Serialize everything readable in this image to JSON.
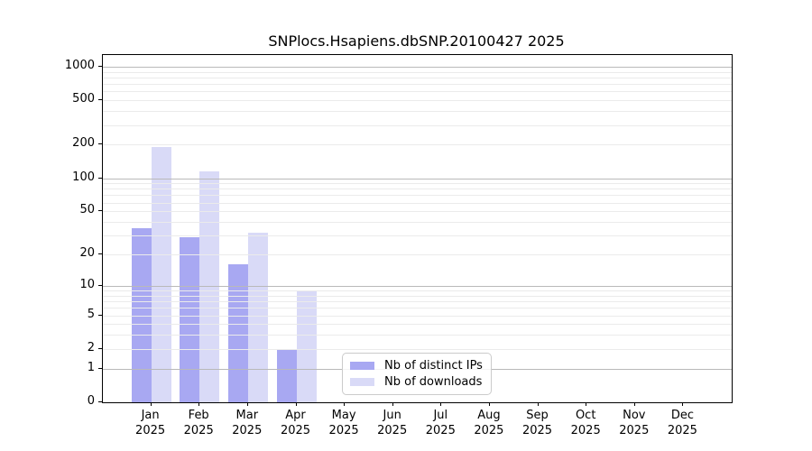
{
  "chart_data": {
    "type": "bar",
    "title": "SNPlocs.Hsapiens.dbSNP.20100427 2025",
    "categories": [
      "Jan 2025",
      "Feb 2025",
      "Mar 2025",
      "Apr 2025",
      "May 2025",
      "Jun 2025",
      "Jul 2025",
      "Aug 2025",
      "Sep 2025",
      "Oct 2025",
      "Nov 2025",
      "Dec 2025"
    ],
    "x_tick_labels": [
      {
        "month": "Jan",
        "year": "2025"
      },
      {
        "month": "Feb",
        "year": "2025"
      },
      {
        "month": "Mar",
        "year": "2025"
      },
      {
        "month": "Apr",
        "year": "2025"
      },
      {
        "month": "May",
        "year": "2025"
      },
      {
        "month": "Jun",
        "year": "2025"
      },
      {
        "month": "Jul",
        "year": "2025"
      },
      {
        "month": "Aug",
        "year": "2025"
      },
      {
        "month": "Sep",
        "year": "2025"
      },
      {
        "month": "Oct",
        "year": "2025"
      },
      {
        "month": "Nov",
        "year": "2025"
      },
      {
        "month": "Dec",
        "year": "2025"
      }
    ],
    "series": [
      {
        "name": "Nb of distinct IPs",
        "color": "#a8a8f2",
        "values": [
          35,
          29,
          16,
          2,
          0,
          0,
          0,
          0,
          0,
          0,
          0,
          0
        ]
      },
      {
        "name": "Nb of downloads",
        "color": "#d9daf7",
        "values": [
          191,
          115,
          32,
          9,
          0,
          0,
          0,
          0,
          0,
          0,
          0,
          0
        ]
      }
    ],
    "yscale": "log10(1+v)",
    "ylim": [
      0,
      1320
    ],
    "y_ticks_labeled": [
      0,
      1,
      2,
      5,
      10,
      20,
      50,
      100,
      200,
      500,
      1000
    ],
    "y_gridlines_major": [
      1,
      10,
      100,
      1000
    ],
    "y_gridlines_minor": [
      2,
      3,
      4,
      5,
      6,
      7,
      8,
      9,
      20,
      30,
      40,
      50,
      60,
      70,
      80,
      90,
      200,
      300,
      400,
      500,
      600,
      700,
      800,
      900
    ],
    "grid": "on",
    "legend_position": "lower center",
    "colors": {
      "distinct_ips_bar": "#a8a8f2",
      "downloads_bar": "#d9daf7",
      "major_grid": "#b9b9b9",
      "minor_grid": "#ebebeb",
      "spine": "#000000",
      "legend_border": "#cbcbcb",
      "background": "#ffffff"
    }
  }
}
